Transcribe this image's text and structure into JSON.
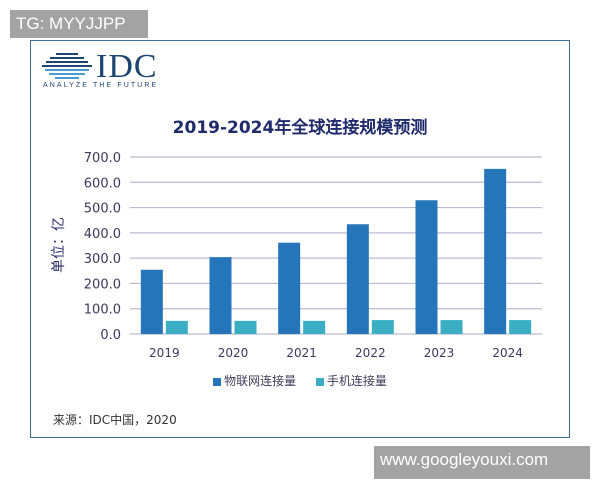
{
  "watermark_top": "TG: MYYJJPP",
  "watermark_bottom": "www.googleyouxi.com",
  "logo": {
    "name": "IDC",
    "tagline": "ANALYZE THE FUTURE"
  },
  "source": "来源：IDC中国，2020",
  "colors": {
    "iot": "#2575bb",
    "phone": "#3aafc4",
    "frame": "#3d6f95",
    "title": "#1f2a6b"
  },
  "chart_data": {
    "type": "bar",
    "title": "2019-2024年全球连接规模预测",
    "ylabel": "单位：亿",
    "xlabel": "",
    "categories": [
      "2019",
      "2020",
      "2021",
      "2022",
      "2023",
      "2024"
    ],
    "series": [
      {
        "name": "物联网连接量",
        "values": [
          254,
          304,
          361,
          434,
          529,
          653
        ]
      },
      {
        "name": "手机连接量",
        "values": [
          52,
          52,
          52,
          55,
          55,
          55
        ]
      }
    ],
    "ylim": [
      0,
      700
    ],
    "yticks": [
      "0.0",
      "100.0",
      "200.0",
      "300.0",
      "400.0",
      "500.0",
      "600.0",
      "700.0"
    ],
    "grid": true,
    "legend": "bottom"
  }
}
